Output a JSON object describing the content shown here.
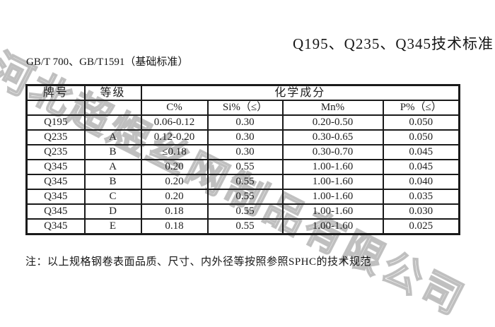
{
  "page": {
    "title": "Q195、Q235、Q345技术标准",
    "subtitle": "GB/T 700、GB/T1591（基础标准）",
    "note": "注：以上规格钢卷表面品质、尺寸、内外径等按照参照SPHC的技术规范",
    "watermark": "河北超煜丝网制品有限公司"
  },
  "table": {
    "header": {
      "col_brand": "牌号",
      "col_grade": "等级",
      "group_chemical": "化学成分",
      "col_c": "C%",
      "col_si": "Si%（≤）",
      "col_mn": "Mn%",
      "col_p": "P%（≤）"
    },
    "rows": [
      {
        "brand": "Q195",
        "grade": "",
        "c": "0.06-0.12",
        "si": "0.30",
        "mn": "0.20-0.50",
        "p": "0.050"
      },
      {
        "brand": "Q235",
        "grade": "A",
        "c": "0.12-0.20",
        "si": "0.30",
        "mn": "0.30-0.65",
        "p": "0.050"
      },
      {
        "brand": "Q235",
        "grade": "B",
        "c": "≤0.18",
        "si": "0.30",
        "mn": "0.30-0.70",
        "p": "0.045"
      },
      {
        "brand": "Q345",
        "grade": "A",
        "c": "0.20",
        "si": "0.55",
        "mn": "1.00-1.60",
        "p": "0.045"
      },
      {
        "brand": "Q345",
        "grade": "B",
        "c": "0.20",
        "si": "0.55",
        "mn": "1.00-1.60",
        "p": "0.040"
      },
      {
        "brand": "Q345",
        "grade": "C",
        "c": "0.20",
        "si": "0.55",
        "mn": "1.00-1.60",
        "p": "0.035"
      },
      {
        "brand": "Q345",
        "grade": "D",
        "c": "0.18",
        "si": "0.55",
        "mn": "1.00-1.60",
        "p": "0.030"
      },
      {
        "brand": "Q345",
        "grade": "E",
        "c": "0.18",
        "si": "0.55",
        "mn": "1.00-1.60",
        "p": "0.025"
      }
    ]
  },
  "colors": {
    "text": "#1f1f1f",
    "border": "#1a1a1a",
    "watermark": "#a8a8a8"
  }
}
